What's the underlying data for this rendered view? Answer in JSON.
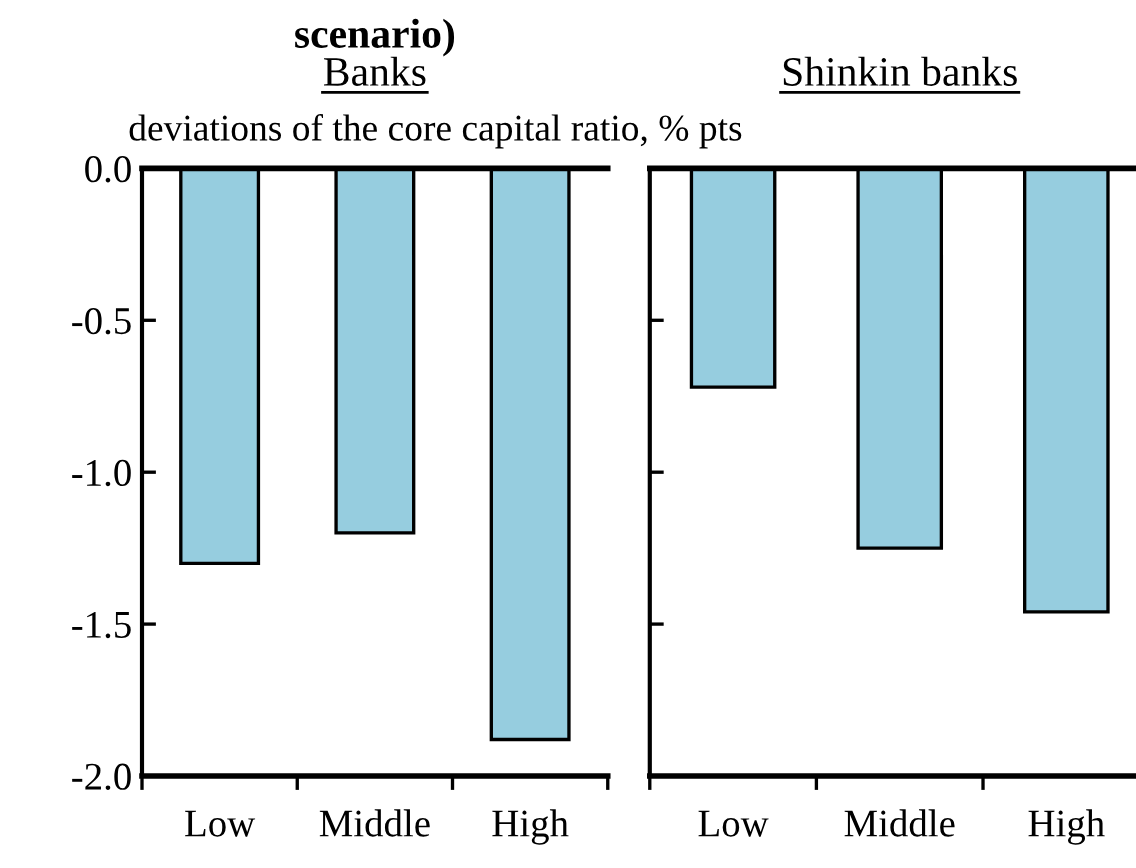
{
  "chart_data": [
    {
      "type": "bar",
      "title": "Banks",
      "subtitle": "deviations of the core capital ratio, % pts",
      "annotations": [
        "scenario)"
      ],
      "categories": [
        "Low",
        "Middle",
        "High"
      ],
      "values": [
        -1.3,
        -1.2,
        -1.88
      ],
      "color": "#96cddf",
      "ylim": [
        -2.0,
        0.0
      ],
      "yticks": [
        {
          "value": 0.0,
          "label": "0.0"
        },
        {
          "value": -0.5,
          "label": "-0.5"
        },
        {
          "value": -1.0,
          "label": "-1.0"
        },
        {
          "value": -1.5,
          "label": "-1.5"
        },
        {
          "value": -2.0,
          "label": "-2.0"
        }
      ],
      "grid": false,
      "legend": false
    },
    {
      "type": "bar",
      "title": "Shinkin banks",
      "categories": [
        "Low",
        "Middle",
        "High"
      ],
      "values": [
        -0.72,
        -1.25,
        -1.46
      ],
      "color": "#96cddf",
      "ylim": [
        -2.0,
        0.0
      ],
      "yticks": [
        {
          "value": 0.0,
          "label": null
        },
        {
          "value": -0.5,
          "label": null
        },
        {
          "value": -1.0,
          "label": null
        },
        {
          "value": -1.5,
          "label": null
        },
        {
          "value": -2.0,
          "label": null
        }
      ],
      "tick_labels": "x",
      "grid": false,
      "legend": false
    }
  ]
}
